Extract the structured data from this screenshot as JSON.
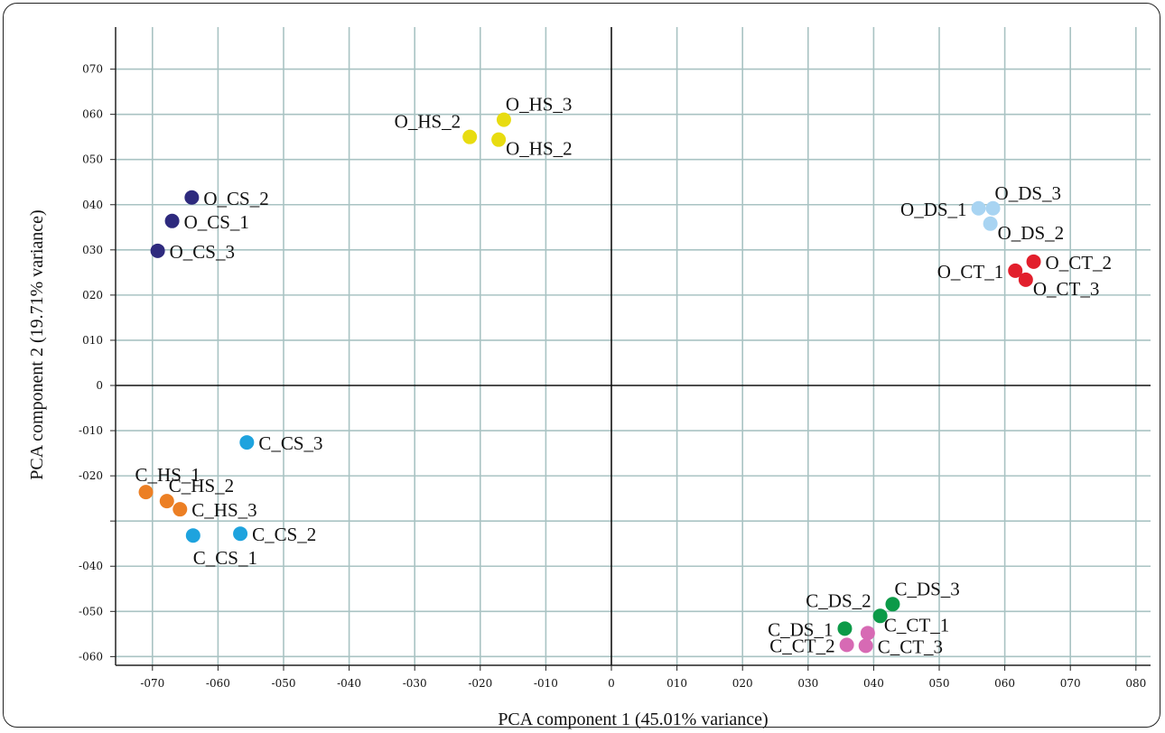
{
  "chart_data": {
    "type": "scatter",
    "title": "",
    "xlabel": "PCA component 1 (45.01% variance)",
    "ylabel": "PCA component 2 (19.71% variance)",
    "xlim": [
      -75,
      82
    ],
    "ylim": [
      -61,
      79
    ],
    "grid": true,
    "x_ticks": [
      {
        "v": -70,
        "label": "-070"
      },
      {
        "v": -60,
        "label": "-060"
      },
      {
        "v": -50,
        "label": "-050"
      },
      {
        "v": -40,
        "label": "-040"
      },
      {
        "v": -30,
        "label": "-030"
      },
      {
        "v": -20,
        "label": "-020"
      },
      {
        "v": -10,
        "label": "-010"
      },
      {
        "v": 0,
        "label": "0"
      },
      {
        "v": 10,
        "label": "010"
      },
      {
        "v": 20,
        "label": "020"
      },
      {
        "v": 30,
        "label": "030"
      },
      {
        "v": 40,
        "label": "040"
      },
      {
        "v": 50,
        "label": "050"
      },
      {
        "v": 60,
        "label": "060"
      },
      {
        "v": 70,
        "label": "070"
      },
      {
        "v": 80,
        "label": "080"
      }
    ],
    "y_ticks": [
      {
        "v": 70,
        "label": "070"
      },
      {
        "v": 60,
        "label": "060"
      },
      {
        "v": 50,
        "label": "050"
      },
      {
        "v": 40,
        "label": "040"
      },
      {
        "v": 30,
        "label": "030"
      },
      {
        "v": 20,
        "label": "020"
      },
      {
        "v": 10,
        "label": "010"
      },
      {
        "v": 0,
        "label": "0"
      },
      {
        "v": -10,
        "label": "-010"
      },
      {
        "v": -20,
        "label": "-020"
      },
      {
        "v": -30,
        "label": ""
      },
      {
        "v": -40,
        "label": "-040"
      },
      {
        "v": -50,
        "label": "-050"
      },
      {
        "v": -60,
        "label": "-060"
      }
    ],
    "series": [
      {
        "color": "#2e2a7e",
        "points": [
          {
            "x": -64.0,
            "y": 41.6,
            "label": "O_CS_2",
            "pos": "right"
          },
          {
            "x": -67.0,
            "y": 36.4,
            "label": "O_CS_1",
            "pos": "right"
          },
          {
            "x": -69.2,
            "y": 29.8,
            "label": "O_CS_3",
            "pos": "right"
          }
        ]
      },
      {
        "color": "#e8dc10",
        "points": [
          {
            "x": -21.6,
            "y": 55.0,
            "label": "O_HS_2",
            "pos": "left-above"
          },
          {
            "x": -16.4,
            "y": 58.8,
            "label": "O_HS_3",
            "pos": "right-above"
          },
          {
            "x": -17.2,
            "y": 54.4,
            "label": "O_HS_2",
            "pos": "right-below"
          }
        ]
      },
      {
        "color": "#a8d4f2",
        "points": [
          {
            "x": 56.0,
            "y": 39.2,
            "label": "O_DS_1",
            "pos": "left"
          },
          {
            "x": 58.2,
            "y": 39.2,
            "label": "O_DS_3",
            "pos": "right-above"
          },
          {
            "x": 57.8,
            "y": 35.8,
            "label": "O_DS_2",
            "pos": "right-below"
          }
        ]
      },
      {
        "color": "#e21f2c",
        "points": [
          {
            "x": 61.6,
            "y": 25.4,
            "label": "O_CT_1",
            "pos": "left"
          },
          {
            "x": 64.4,
            "y": 27.4,
            "label": "O_CT_2",
            "pos": "right"
          },
          {
            "x": 63.2,
            "y": 23.4,
            "label": "O_CT_3",
            "pos": "right-below"
          }
        ]
      },
      {
        "color": "#1ea3de",
        "points": [
          {
            "x": -55.6,
            "y": -12.6,
            "label": "C_CS_3",
            "pos": "right"
          },
          {
            "x": -56.6,
            "y": -32.8,
            "label": "C_CS_2",
            "pos": "right"
          },
          {
            "x": -63.8,
            "y": -33.2,
            "label": "C_CS_1",
            "pos": "below"
          }
        ]
      },
      {
        "color": "#ec7f24",
        "points": [
          {
            "x": -71.0,
            "y": -23.6,
            "label": "C_HS_1",
            "pos": "above"
          },
          {
            "x": -67.8,
            "y": -25.6,
            "label": "C_HS_2",
            "pos": "right-above"
          },
          {
            "x": -65.8,
            "y": -27.4,
            "label": "C_HS_3",
            "pos": "right"
          }
        ]
      },
      {
        "color": "#0c9a48",
        "points": [
          {
            "x": 42.9,
            "y": -48.4,
            "label": "C_DS_3",
            "pos": "right-above"
          },
          {
            "x": 41.0,
            "y": -51.0,
            "label": "C_DS_2",
            "pos": "left-above"
          },
          {
            "x": 35.6,
            "y": -53.8,
            "label": "C_DS_1",
            "pos": "left"
          }
        ]
      },
      {
        "color": "#d76ab4",
        "points": [
          {
            "x": 39.1,
            "y": -54.8,
            "label": "C_CT_1",
            "pos": "right-up"
          },
          {
            "x": 35.9,
            "y": -57.4,
            "label": "C_CT_2",
            "pos": "left"
          },
          {
            "x": 38.8,
            "y": -57.6,
            "label": "C_CT_3",
            "pos": "right"
          }
        ]
      }
    ]
  }
}
